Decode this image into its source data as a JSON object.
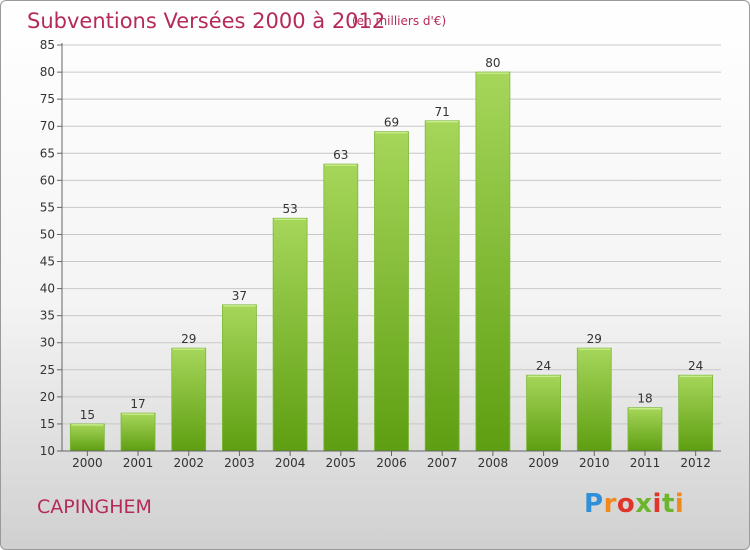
{
  "header": {
    "title": "Subventions Versées 2000 à 2012",
    "unit": "(en milliers d'€)"
  },
  "footer": {
    "commune": "CAPINGHEM",
    "logo": "Proxiti"
  },
  "colors": {
    "title": "#b52a5a",
    "bar_top": "#a6d65a",
    "bar_bottom": "#5e9e12",
    "axis": "#666666",
    "grid": "#c8c8c8"
  },
  "chart_data": {
    "type": "bar",
    "categories": [
      "2000",
      "2001",
      "2002",
      "2003",
      "2004",
      "2005",
      "2006",
      "2007",
      "2008",
      "2009",
      "2010",
      "2011",
      "2012"
    ],
    "values": [
      15,
      17,
      29,
      37,
      53,
      63,
      69,
      71,
      80,
      24,
      29,
      18,
      24
    ],
    "ylim": [
      10,
      85
    ],
    "yticks": [
      10,
      15,
      20,
      25,
      30,
      35,
      40,
      45,
      50,
      55,
      60,
      65,
      70,
      75,
      80,
      85
    ],
    "grid": true,
    "data_labels": true
  }
}
